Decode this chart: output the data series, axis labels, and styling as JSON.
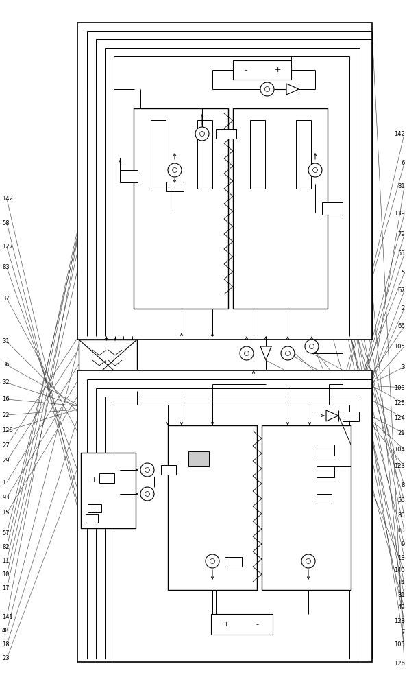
{
  "bg_color": "#ffffff",
  "lc": "#000000",
  "lw": 0.7,
  "fs": 6.0,
  "fig_w": 5.94,
  "fig_h": 10.0,
  "right_labels": [
    [
      968,
      "126"
    ],
    [
      940,
      "105"
    ],
    [
      922,
      "7"
    ],
    [
      905,
      "128"
    ],
    [
      886,
      "49"
    ],
    [
      868,
      "81"
    ],
    [
      850,
      "14"
    ],
    [
      832,
      "140"
    ],
    [
      813,
      "13"
    ],
    [
      793,
      "9"
    ],
    [
      773,
      "10"
    ],
    [
      752,
      "80"
    ],
    [
      730,
      "56"
    ],
    [
      708,
      "8"
    ],
    [
      680,
      "123"
    ],
    [
      655,
      "104"
    ],
    [
      632,
      "21"
    ],
    [
      610,
      "124"
    ],
    [
      588,
      "125"
    ],
    [
      565,
      "103"
    ],
    [
      535,
      "3"
    ],
    [
      505,
      "105"
    ],
    [
      476,
      "66"
    ],
    [
      450,
      "2"
    ],
    [
      424,
      "67"
    ],
    [
      398,
      "5"
    ],
    [
      370,
      "55"
    ],
    [
      342,
      "79"
    ],
    [
      312,
      "139"
    ],
    [
      272,
      "81"
    ],
    [
      238,
      "6"
    ],
    [
      195,
      "142"
    ]
  ],
  "left_labels": [
    [
      960,
      "23"
    ],
    [
      940,
      "18"
    ],
    [
      920,
      "48"
    ],
    [
      900,
      "141"
    ],
    [
      858,
      "17"
    ],
    [
      838,
      "10"
    ],
    [
      818,
      "11"
    ],
    [
      798,
      "82"
    ],
    [
      778,
      "57"
    ],
    [
      748,
      "15"
    ],
    [
      725,
      "93"
    ],
    [
      703,
      "1"
    ],
    [
      672,
      "29"
    ],
    [
      650,
      "27"
    ],
    [
      628,
      "126"
    ],
    [
      605,
      "22"
    ],
    [
      582,
      "16"
    ],
    [
      558,
      "32"
    ],
    [
      532,
      "36"
    ],
    [
      498,
      "31"
    ],
    [
      435,
      "37"
    ],
    [
      390,
      "83"
    ],
    [
      360,
      "127"
    ],
    [
      325,
      "58"
    ],
    [
      290,
      "142"
    ]
  ]
}
